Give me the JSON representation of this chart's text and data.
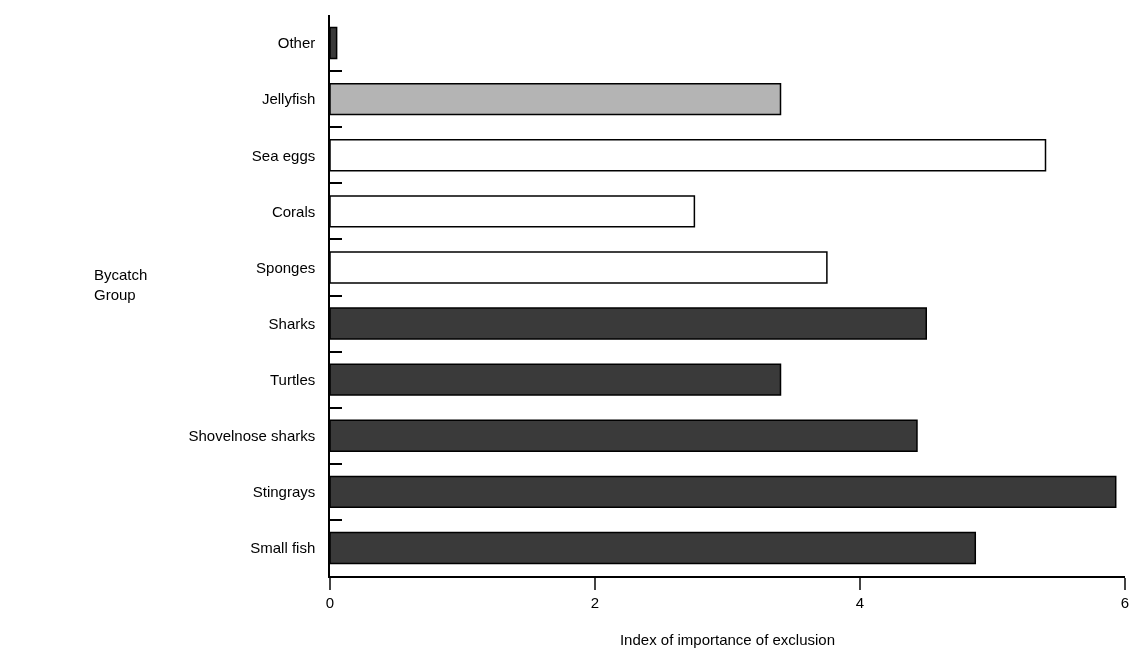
{
  "chart_data": {
    "type": "bar",
    "orientation": "horizontal",
    "xlabel": "Index of importance of exclusion",
    "ylabel": "Bycatch\nGroup",
    "categories": [
      "Other",
      "Jellyfish",
      "Sea eggs",
      "Corals",
      "Sponges",
      "Sharks",
      "Turtles",
      "Shovelnose sharks",
      "Stingrays",
      "Small fish"
    ],
    "values": [
      0.05,
      3.4,
      5.4,
      2.75,
      3.75,
      4.5,
      3.4,
      4.43,
      5.93,
      4.87
    ],
    "colors": [
      "#3a3a3a",
      "#b4b4b4",
      "#ffffff",
      "#ffffff",
      "#ffffff",
      "#3a3a3a",
      "#3a3a3a",
      "#3a3a3a",
      "#3a3a3a",
      "#3a3a3a"
    ],
    "xlim": [
      0,
      6
    ],
    "xticks": [
      0,
      2,
      4,
      6
    ]
  }
}
